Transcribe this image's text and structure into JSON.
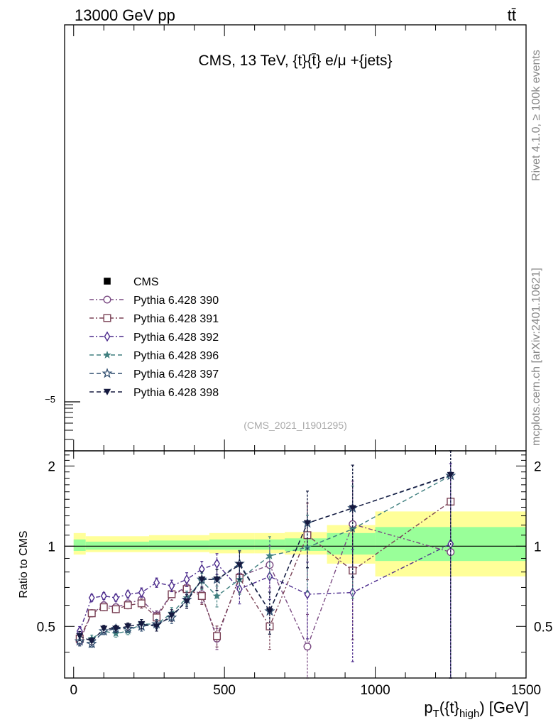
{
  "header": {
    "beam": "13000 GeV pp",
    "process": "tt̄"
  },
  "side_labels": {
    "rivet": "Rivet 4.1.0, ≥ 100k events",
    "source": "mcplots.cern.ch [arXiv:2401.10621]"
  },
  "chart_data": {
    "type": "line",
    "title": "CMS, 13 TeV, {t}{t̄} e/μ +{jets}",
    "analysis_id": "(CMS_2021_I1901295)",
    "xlabel": "p_T({t}_high) [GeV]",
    "xlabel_parts": {
      "p": "p",
      "sub_T": "T",
      "open": "({t}",
      "sub_high": "high",
      "close": ") [GeV]"
    },
    "ylabel_ratio": "Ratio to CMS",
    "xlim": [
      -30,
      1500
    ],
    "ratio_ylim": [
      0.32,
      2.28
    ],
    "upper_tick_label": "−5",
    "x_ticks": [
      0,
      500,
      1000,
      1500
    ],
    "ratio_ticks": [
      0.5,
      1,
      2
    ],
    "ratio_tick_labels": [
      "0.5",
      "1",
      "2"
    ],
    "legend": [
      {
        "name": "CMS",
        "color": "#000000",
        "marker": "filled-square",
        "line": "none"
      },
      {
        "name": "Pythia 6.428 390",
        "color": "#7a4a82",
        "marker": "open-circle",
        "line": "dashdot"
      },
      {
        "name": "Pythia 6.428 391",
        "color": "#7a4155",
        "marker": "open-square",
        "line": "dashdot"
      },
      {
        "name": "Pythia 6.428 392",
        "color": "#4b2a8c",
        "marker": "open-diamond",
        "line": "dashdot"
      },
      {
        "name": "Pythia 6.428 396",
        "color": "#3f7f7f",
        "marker": "filled-star",
        "line": "dashed"
      },
      {
        "name": "Pythia 6.428 397",
        "color": "#2f4d6f",
        "marker": "open-star",
        "line": "dashed"
      },
      {
        "name": "Pythia 6.428 398",
        "color": "#15193f",
        "marker": "filled-triangle-down",
        "line": "dashed"
      }
    ],
    "bands": {
      "yellow_color": "#ffff99",
      "green_color": "#99ff99",
      "bins": [
        {
          "x0": 0,
          "x1": 40,
          "y_lo": 0.93,
          "y_hi": 1.12,
          "g_lo": 0.96,
          "g_hi": 1.06
        },
        {
          "x0": 40,
          "x1": 250,
          "y_lo": 0.95,
          "y_hi": 1.09,
          "g_lo": 0.97,
          "g_hi": 1.04
        },
        {
          "x0": 250,
          "x1": 450,
          "y_lo": 0.95,
          "y_hi": 1.1,
          "g_lo": 0.97,
          "g_hi": 1.05
        },
        {
          "x0": 450,
          "x1": 600,
          "y_lo": 0.94,
          "y_hi": 1.12,
          "g_lo": 0.97,
          "g_hi": 1.06
        },
        {
          "x0": 600,
          "x1": 700,
          "y_lo": 0.94,
          "y_hi": 1.12,
          "g_lo": 0.97,
          "g_hi": 1.06
        },
        {
          "x0": 700,
          "x1": 840,
          "y_lo": 0.93,
          "y_hi": 1.13,
          "g_lo": 0.96,
          "g_hi": 1.07
        },
        {
          "x0": 840,
          "x1": 1000,
          "y_lo": 0.86,
          "y_hi": 1.2,
          "g_lo": 0.93,
          "g_hi": 1.12
        },
        {
          "x0": 1000,
          "x1": 1500,
          "y_lo": 0.77,
          "y_hi": 1.35,
          "g_lo": 0.88,
          "g_hi": 1.18
        }
      ]
    },
    "x": [
      20,
      60,
      100,
      140,
      180,
      225,
      275,
      325,
      375,
      425,
      475,
      550,
      650,
      775,
      925,
      1250
    ],
    "series": [
      {
        "name": "Pythia 6.428 390",
        "values": [
          0.44,
          0.56,
          0.6,
          0.59,
          0.61,
          0.63,
          0.55,
          0.66,
          0.7,
          0.66,
          0.45,
          0.77,
          0.85,
          0.42,
          1.21,
          0.95
        ]
      },
      {
        "name": "Pythia 6.428 391",
        "values": [
          0.45,
          0.56,
          0.59,
          0.58,
          0.6,
          0.61,
          0.54,
          0.66,
          0.69,
          0.65,
          0.46,
          0.76,
          0.5,
          1.1,
          0.81,
          1.47
        ]
      },
      {
        "name": "Pythia 6.428 392",
        "values": [
          0.48,
          0.64,
          0.65,
          0.64,
          0.66,
          0.67,
          0.73,
          0.71,
          0.75,
          0.82,
          0.86,
          0.69,
          0.77,
          0.66,
          0.67,
          1.02
        ]
      },
      {
        "name": "Pythia 6.428 396",
        "values": [
          0.44,
          0.45,
          0.48,
          0.47,
          0.48,
          0.51,
          0.51,
          0.56,
          0.64,
          0.74,
          0.65,
          0.75,
          0.92,
          0.99,
          1.16,
          1.84
        ]
      },
      {
        "name": "Pythia 6.428 397",
        "values": [
          0.44,
          0.43,
          0.48,
          0.49,
          0.49,
          0.5,
          0.51,
          0.54,
          0.63,
          0.75,
          0.75,
          0.86,
          0.57,
          1.22,
          1.39,
          1.84
        ]
      },
      {
        "name": "Pythia 6.428 398",
        "values": [
          0.46,
          0.44,
          0.49,
          0.49,
          0.5,
          0.51,
          0.5,
          0.55,
          0.62,
          0.75,
          0.75,
          0.85,
          0.57,
          1.22,
          1.39,
          1.85
        ]
      }
    ],
    "errors": [
      0.04,
      0.03,
      0.03,
      0.03,
      0.03,
      0.04,
      0.04,
      0.05,
      0.06,
      0.07,
      0.09,
      0.12,
      0.18,
      0.32,
      0.45,
      1.0
    ]
  }
}
